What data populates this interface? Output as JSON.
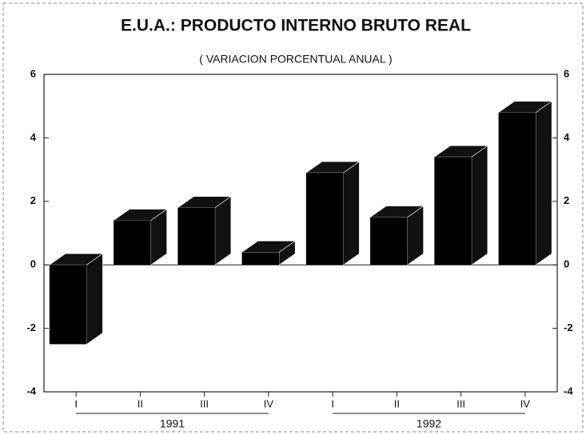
{
  "chart_data": {
    "type": "bar",
    "title": "E.U.A.: PRODUCTO INTERNO BRUTO REAL",
    "subtitle": "( VARIACION PORCENTUAL ANUAL )",
    "categories": [
      "I",
      "II",
      "III",
      "IV",
      "I",
      "II",
      "III",
      "IV"
    ],
    "group_labels": [
      "1991",
      "1992"
    ],
    "values": [
      -2.5,
      1.4,
      1.8,
      0.4,
      2.9,
      1.5,
      3.4,
      4.8
    ],
    "color": "#000000",
    "ylim": [
      -4,
      6
    ],
    "yticks": [
      -4,
      -2,
      0,
      2,
      4,
      6
    ]
  }
}
